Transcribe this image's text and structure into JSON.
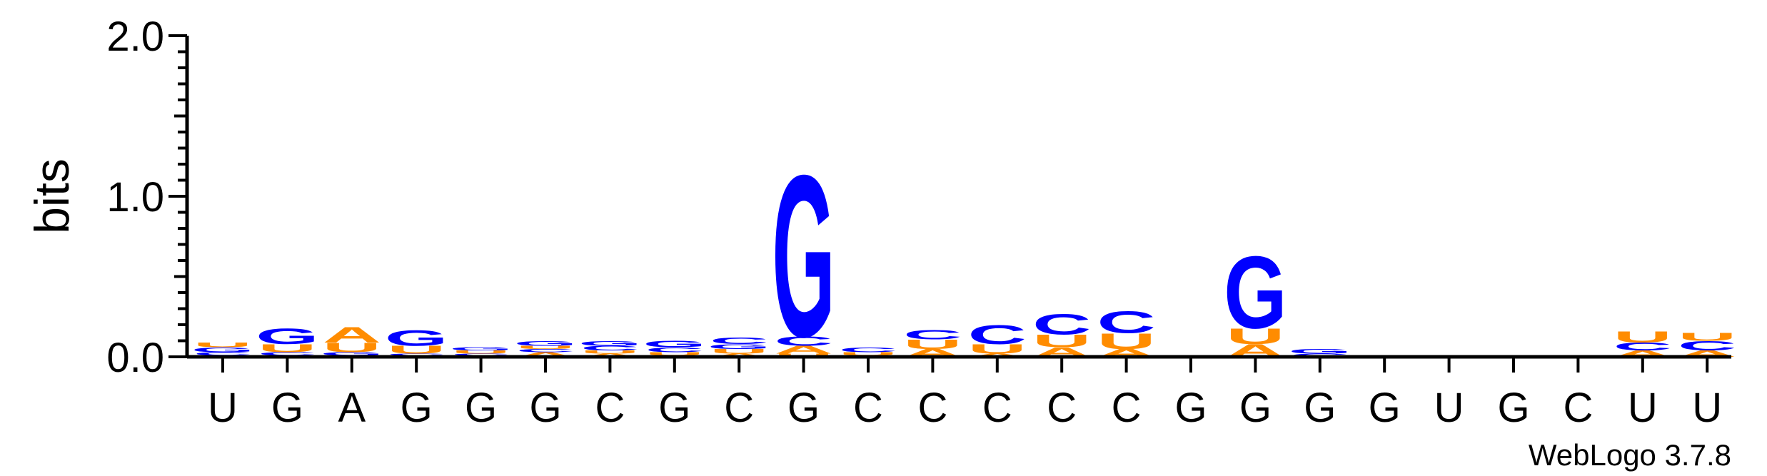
{
  "chart_data": {
    "type": "sequence-logo",
    "ylabel": "bits",
    "ylim": [
      0,
      2.0
    ],
    "yticks": [
      "0.0",
      "1.0",
      "2.0"
    ],
    "positions": [
      "U",
      "G",
      "A",
      "G",
      "G",
      "G",
      "C",
      "G",
      "C",
      "G",
      "C",
      "C",
      "C",
      "C",
      "C",
      "G",
      "G",
      "G",
      "G",
      "U",
      "G",
      "C",
      "U",
      "U"
    ],
    "colors": {
      "G": "#0000ff",
      "C": "#0000ff",
      "A": "#ff8c00",
      "U": "#ff8c00"
    },
    "stacks": [
      [
        {
          "letter": "A",
          "height": 0.01
        },
        {
          "letter": "C",
          "height": 0.02
        },
        {
          "letter": "G",
          "height": 0.03
        },
        {
          "letter": "U",
          "height": 0.03
        }
      ],
      [
        {
          "letter": "A",
          "height": 0.01
        },
        {
          "letter": "C",
          "height": 0.02
        },
        {
          "letter": "U",
          "height": 0.05
        },
        {
          "letter": "G",
          "height": 0.1
        }
      ],
      [
        {
          "letter": "C",
          "height": 0.01
        },
        {
          "letter": "G",
          "height": 0.02
        },
        {
          "letter": "U",
          "height": 0.06
        },
        {
          "letter": "A",
          "height": 0.1
        }
      ],
      [
        {
          "letter": "A",
          "height": 0.01
        },
        {
          "letter": "C",
          "height": 0.01
        },
        {
          "letter": "U",
          "height": 0.05
        },
        {
          "letter": "G",
          "height": 0.1
        }
      ],
      [
        {
          "letter": "A",
          "height": 0.01
        },
        {
          "letter": "C",
          "height": 0.01
        },
        {
          "letter": "U",
          "height": 0.02
        },
        {
          "letter": "G",
          "height": 0.02
        }
      ],
      [
        {
          "letter": "A",
          "height": 0.03
        },
        {
          "letter": "C",
          "height": 0.02
        },
        {
          "letter": "U",
          "height": 0.02
        },
        {
          "letter": "G",
          "height": 0.03
        }
      ],
      [
        {
          "letter": "A",
          "height": 0.02
        },
        {
          "letter": "U",
          "height": 0.02
        },
        {
          "letter": "C",
          "height": 0.03
        },
        {
          "letter": "G",
          "height": 0.03
        }
      ],
      [
        {
          "letter": "A",
          "height": 0.01
        },
        {
          "letter": "U",
          "height": 0.02
        },
        {
          "letter": "C",
          "height": 0.03
        },
        {
          "letter": "G",
          "height": 0.04
        }
      ],
      [
        {
          "letter": "A",
          "height": 0.02
        },
        {
          "letter": "U",
          "height": 0.03
        },
        {
          "letter": "G",
          "height": 0.03
        },
        {
          "letter": "C",
          "height": 0.04
        }
      ],
      [
        {
          "letter": "U",
          "height": 0.02
        },
        {
          "letter": "A",
          "height": 0.05
        },
        {
          "letter": "C",
          "height": 0.06
        },
        {
          "letter": "G",
          "height": 1.03
        }
      ],
      [
        {
          "letter": "A",
          "height": 0.01
        },
        {
          "letter": "U",
          "height": 0.02
        },
        {
          "letter": "C",
          "height": 0.03
        }
      ],
      [
        {
          "letter": "A",
          "height": 0.05
        },
        {
          "letter": "U",
          "height": 0.06
        },
        {
          "letter": "C",
          "height": 0.06
        }
      ],
      [
        {
          "letter": "A",
          "height": 0.02
        },
        {
          "letter": "U",
          "height": 0.06
        },
        {
          "letter": "C",
          "height": 0.12
        }
      ],
      [
        {
          "letter": "A",
          "height": 0.06
        },
        {
          "letter": "U",
          "height": 0.08
        },
        {
          "letter": "C",
          "height": 0.13
        }
      ],
      [
        {
          "letter": "A",
          "height": 0.05
        },
        {
          "letter": "U",
          "height": 0.1
        },
        {
          "letter": "C",
          "height": 0.14
        }
      ],
      [
        {
          "letter": "G",
          "height": 0.01
        }
      ],
      [
        {
          "letter": "A",
          "height": 0.08
        },
        {
          "letter": "U",
          "height": 0.1
        },
        {
          "letter": "G",
          "height": 0.46
        }
      ],
      [
        {
          "letter": "C",
          "height": 0.02
        },
        {
          "letter": "G",
          "height": 0.03
        }
      ],
      [
        {
          "letter": "G",
          "height": 0.003
        }
      ],
      [
        {
          "letter": "U",
          "height": 0.003
        }
      ],
      [
        {
          "letter": "G",
          "height": 0.003
        }
      ],
      [
        {
          "letter": "C",
          "height": 0.003
        }
      ],
      [
        {
          "letter": "A",
          "height": 0.04
        },
        {
          "letter": "C",
          "height": 0.05
        },
        {
          "letter": "U",
          "height": 0.07
        }
      ],
      [
        {
          "letter": "A",
          "height": 0.04
        },
        {
          "letter": "C",
          "height": 0.06
        },
        {
          "letter": "U",
          "height": 0.05
        }
      ]
    ]
  },
  "footer": {
    "credit": "WebLogo 3.7.8"
  }
}
